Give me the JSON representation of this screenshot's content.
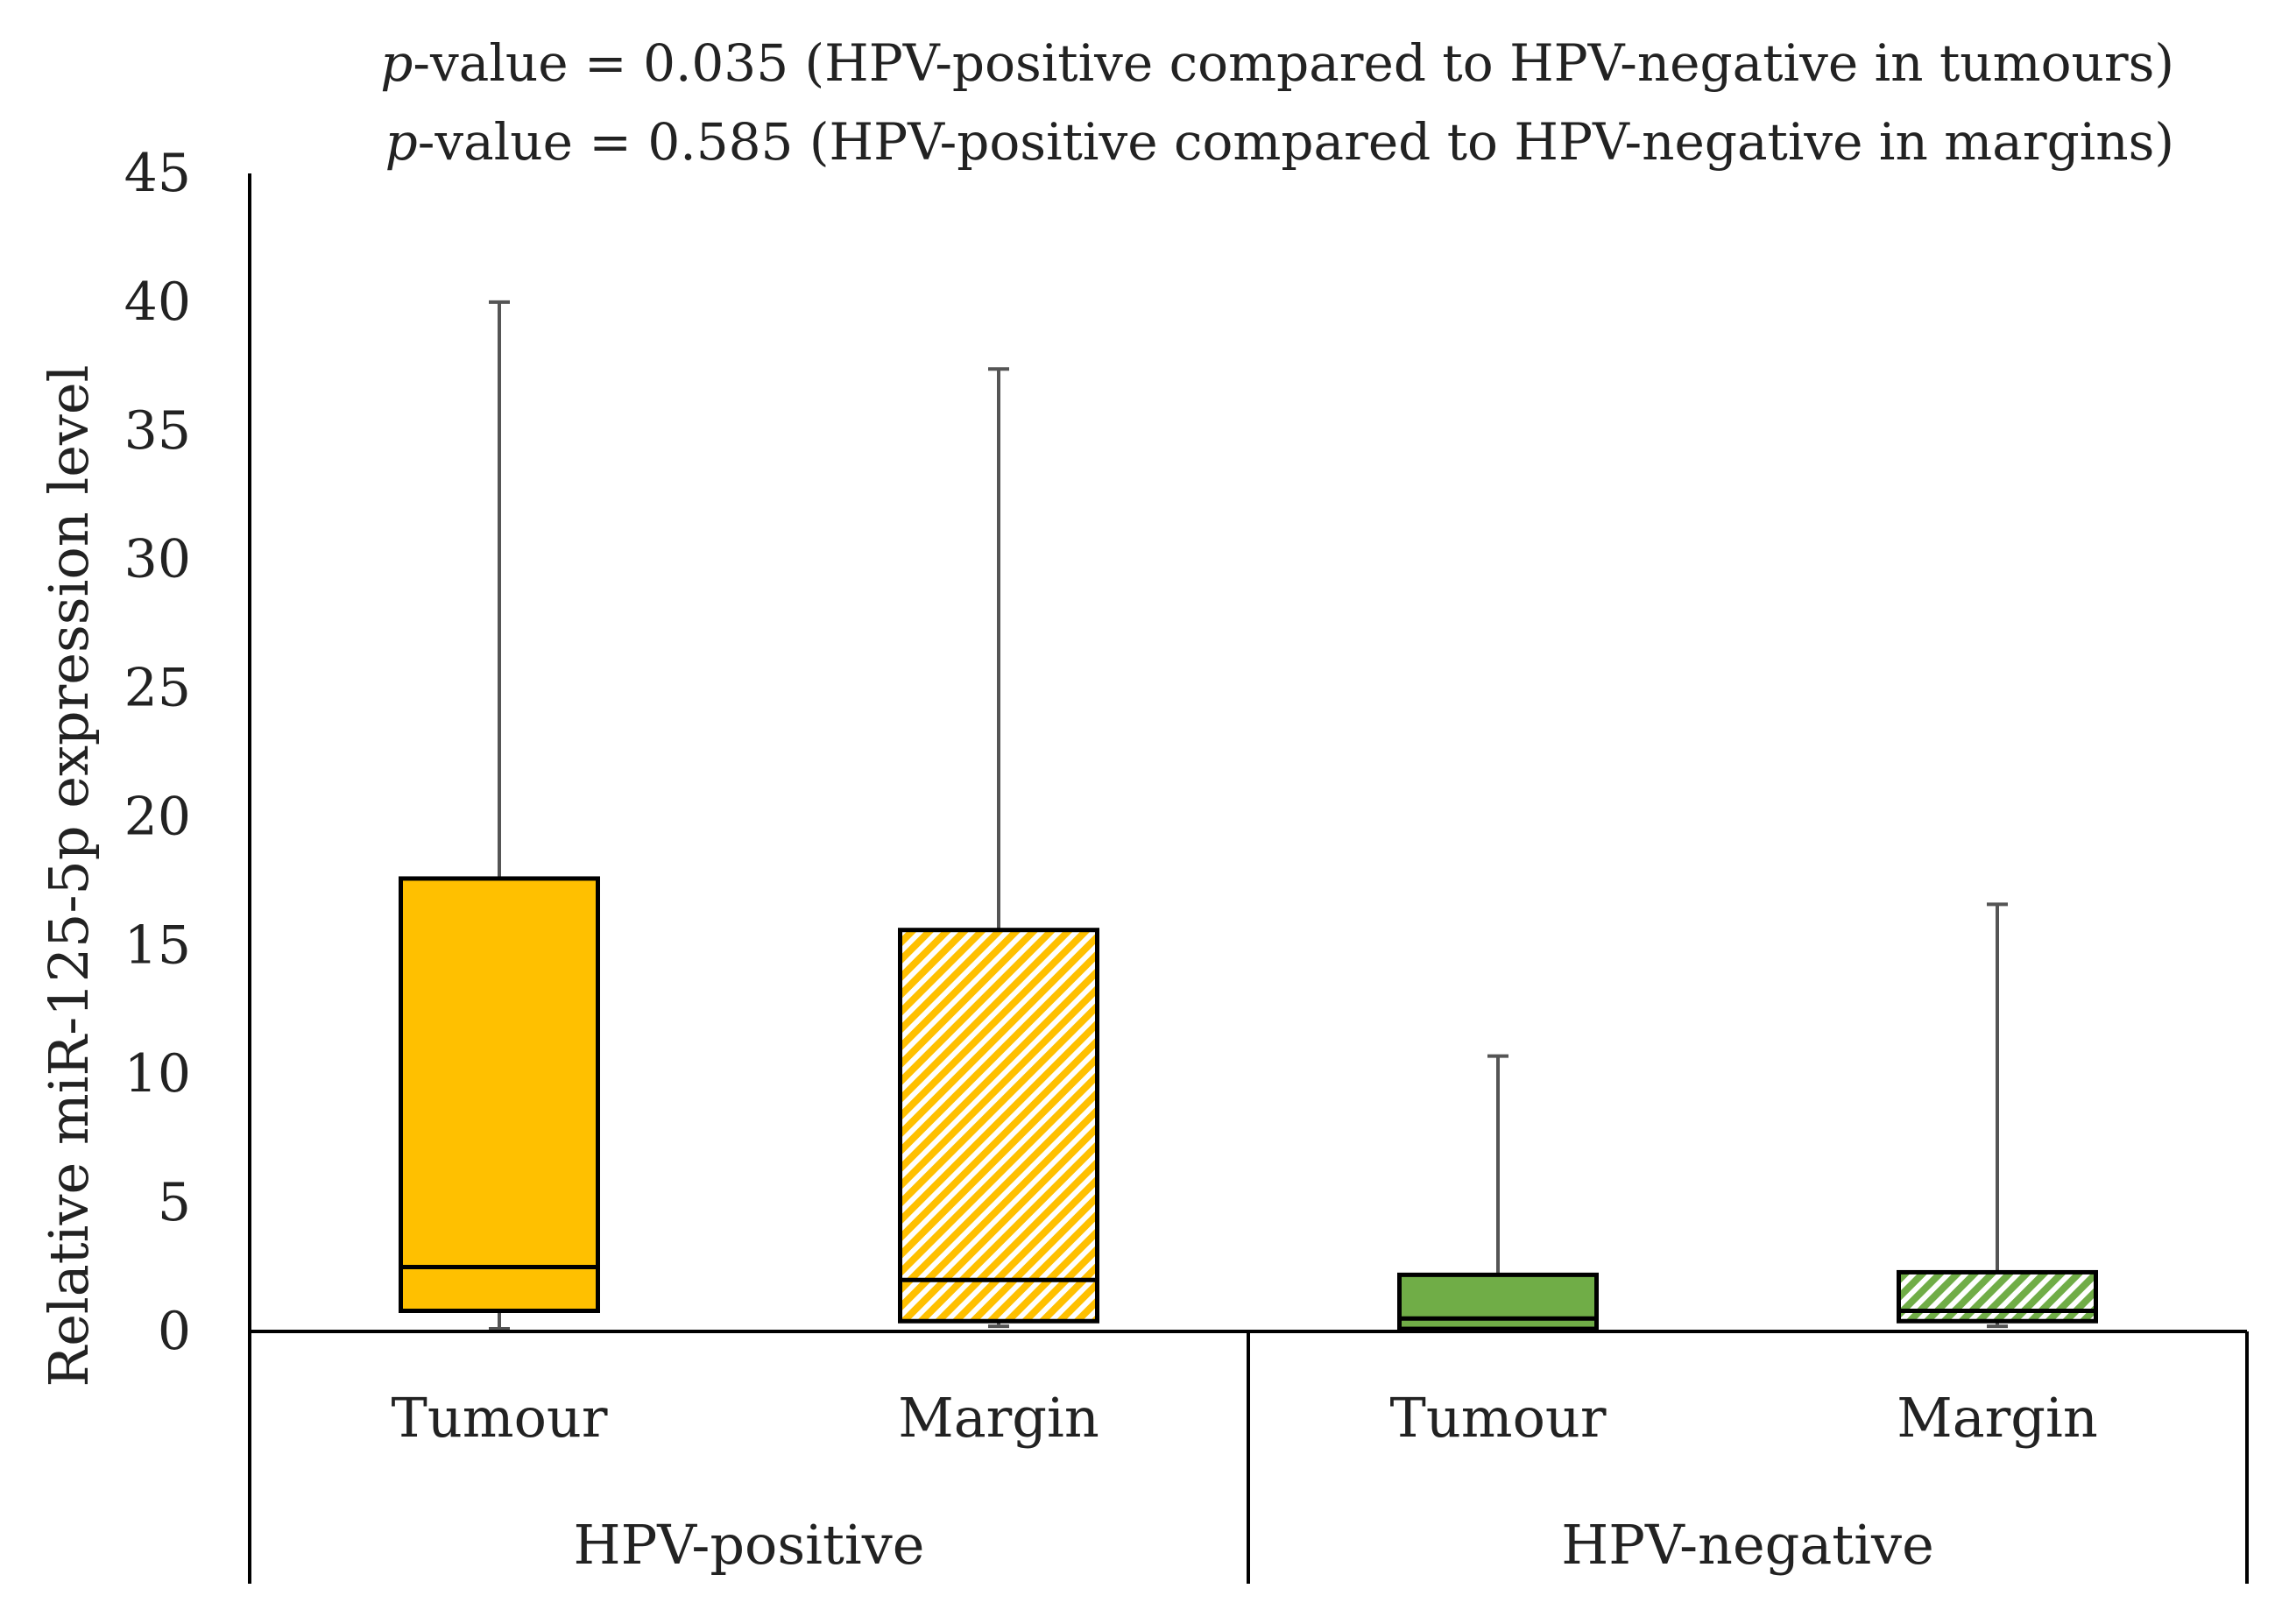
{
  "chart_data": {
    "type": "boxplot",
    "annotations": [
      {
        "italic_prefix": "p",
        "text": "-value = 0.035 (HPV-positive compared to HPV-negative in tumours)"
      },
      {
        "italic_prefix": "p",
        "text": "-value = 0.585 (HPV-positive compared to HPV-negative in margins)"
      }
    ],
    "ylabel": "Relative miR-125-5p expression level",
    "ylim": [
      0,
      45
    ],
    "yticks": [
      0,
      5,
      10,
      15,
      20,
      25,
      30,
      35,
      40,
      45
    ],
    "groups": [
      {
        "label": "HPV-positive",
        "categories": [
          "Tumour",
          "Margin"
        ]
      },
      {
        "label": "HPV-negative",
        "categories": [
          "Tumour",
          "Margin"
        ]
      }
    ],
    "boxes": [
      {
        "group": "HPV-positive",
        "category": "Tumour",
        "min": 0.1,
        "q1": 0.8,
        "median": 2.5,
        "q3": 17.6,
        "max": 40.0,
        "color": "#ffc000",
        "pattern": "solid"
      },
      {
        "group": "HPV-positive",
        "category": "Margin",
        "min": 0.2,
        "q1": 0.4,
        "median": 2.0,
        "q3": 15.6,
        "max": 37.4,
        "color": "#ffc000",
        "pattern": "hatched"
      },
      {
        "group": "HPV-negative",
        "category": "Tumour",
        "min": 0.0,
        "q1": 0.1,
        "median": 0.5,
        "q3": 2.2,
        "max": 10.7,
        "color": "#70ad47",
        "pattern": "solid"
      },
      {
        "group": "HPV-negative",
        "category": "Margin",
        "min": 0.2,
        "q1": 0.4,
        "median": 0.8,
        "q3": 2.3,
        "max": 16.6,
        "color": "#70ad47",
        "pattern": "hatched"
      }
    ]
  }
}
